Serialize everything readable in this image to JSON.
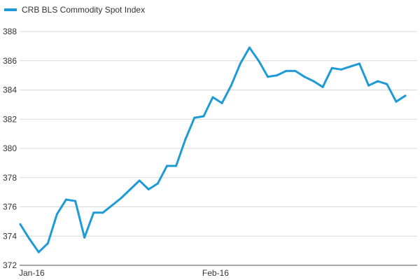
{
  "chart_data": {
    "type": "line",
    "title": "",
    "xlabel": "",
    "ylabel": "",
    "legend_position": "top-left",
    "grid": "horizontal",
    "ylim": [
      372,
      388
    ],
    "y_ticks": [
      372,
      374,
      376,
      378,
      380,
      382,
      384,
      386,
      388
    ],
    "x_tick_labels": [
      {
        "label": "Jan-16",
        "index": 0
      },
      {
        "label": "Feb-16",
        "index": 20
      }
    ],
    "series": [
      {
        "name": "CRB BLS Commodity Spot Index",
        "color": "#1e9bd7",
        "values": [
          374.8,
          373.8,
          372.9,
          373.5,
          375.5,
          376.5,
          376.4,
          373.9,
          375.6,
          375.6,
          376.1,
          376.6,
          377.2,
          377.8,
          377.2,
          377.6,
          378.8,
          378.8,
          380.6,
          382.1,
          382.2,
          383.5,
          383.1,
          384.3,
          385.8,
          386.9,
          386.0,
          384.9,
          385.0,
          385.3,
          385.3,
          384.9,
          384.6,
          384.2,
          385.5,
          385.4,
          385.6,
          385.8,
          384.3,
          384.6,
          384.4,
          383.2,
          383.6
        ]
      }
    ]
  }
}
